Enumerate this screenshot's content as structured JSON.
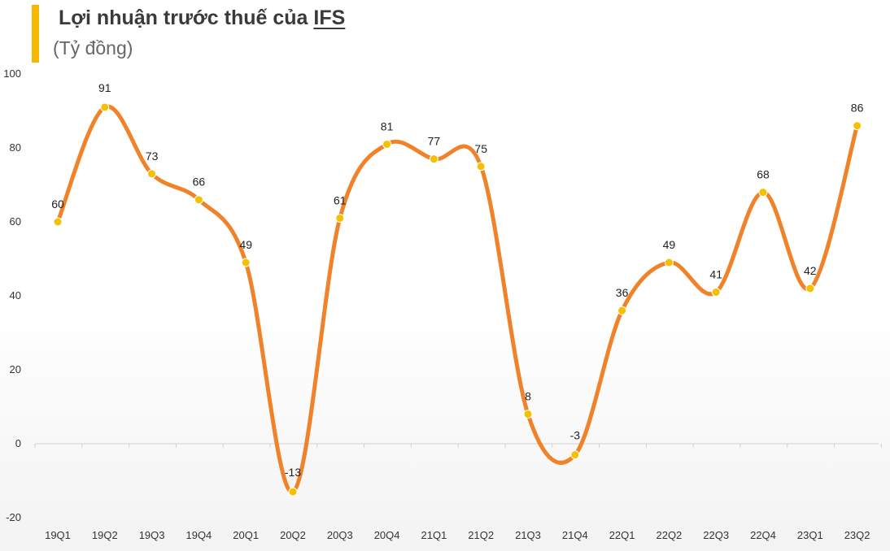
{
  "header": {
    "title_prefix": "Lợi nhuận trước thuế của ",
    "title_company": "IFS",
    "subtitle": "(Tỷ đồng)"
  },
  "chart_data": {
    "type": "line",
    "title": "Lợi nhuận trước thuế của IFS",
    "subtitle": "(Tỷ đồng)",
    "xlabel": "",
    "ylabel": "",
    "categories": [
      "19Q1",
      "19Q2",
      "19Q3",
      "19Q4",
      "20Q1",
      "20Q2",
      "20Q3",
      "20Q4",
      "21Q1",
      "21Q2",
      "21Q3",
      "21Q4",
      "22Q1",
      "22Q2",
      "22Q3",
      "22Q4",
      "23Q1",
      "23Q2"
    ],
    "series": [
      {
        "values": [
          60,
          91,
          73,
          66,
          49,
          -13,
          61,
          81,
          77,
          75,
          8,
          -3,
          36,
          49,
          41,
          68,
          42,
          86
        ]
      }
    ],
    "ylim": [
      -20,
      100
    ],
    "yticks": [
      -20,
      0,
      20,
      40,
      60,
      80,
      100
    ],
    "smooth": true,
    "grid": false,
    "legend": "none",
    "colors": {
      "line": "#f0832a",
      "marker": "#f5c000",
      "accent": "#f5b800",
      "axis": "#d0d0d0"
    }
  }
}
